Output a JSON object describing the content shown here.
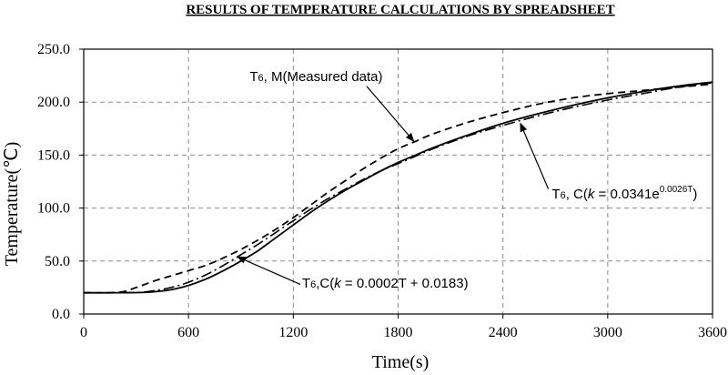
{
  "chart_data": {
    "type": "line",
    "title": "RESULTS OF TEMPERATURE CALCULATIONS BY SPREADSHEET",
    "xlabel": "Time(s)",
    "ylabel": "Temperature(℃)",
    "xlim": [
      0,
      3600
    ],
    "ylim": [
      0,
      250
    ],
    "x_ticks": [
      "0",
      "600",
      "1200",
      "1800",
      "2400",
      "3000",
      "3600"
    ],
    "x_tick_values": [
      0,
      600,
      1200,
      1800,
      2400,
      3000,
      3600
    ],
    "y_ticks": [
      "0.0",
      "50.0",
      "100.0",
      "150.0",
      "200.0",
      "250.0"
    ],
    "y_tick_values": [
      0,
      50,
      100,
      150,
      200,
      250
    ],
    "grid": true,
    "series": [
      {
        "style": "dashed",
        "x": [
          0,
          200,
          300,
          400,
          500,
          600,
          700,
          800,
          900,
          1000,
          1100,
          1200,
          1300,
          1400,
          1500,
          1600,
          1700,
          1800,
          1900,
          2000,
          2200,
          2400,
          2600,
          2800,
          3000,
          3200,
          3400,
          3600
        ],
        "y": [
          20,
          20.5,
          25,
          31,
          36,
          41,
          46,
          53,
          61,
          70,
          80,
          91,
          103,
          115,
          126,
          137,
          147,
          156,
          163,
          170,
          181,
          190,
          198,
          204,
          208,
          211,
          214,
          217
        ]
      },
      {
        "style": "solid",
        "x": [
          0,
          300,
          400,
          500,
          600,
          700,
          800,
          900,
          1000,
          1100,
          1200,
          1300,
          1400,
          1500,
          1600,
          1700,
          1800,
          1900,
          2000,
          2200,
          2400,
          2600,
          2800,
          3000,
          3200,
          3400,
          3600
        ],
        "y": [
          20,
          20.2,
          21,
          23,
          27,
          33,
          41,
          50,
          60,
          72,
          84,
          96,
          107,
          117,
          126,
          135,
          143,
          150,
          157,
          169,
          180,
          189,
          197,
          204,
          210,
          215,
          219
        ]
      },
      {
        "style": "dash-dot",
        "x": [
          0,
          300,
          400,
          500,
          600,
          700,
          800,
          900,
          1000,
          1100,
          1200,
          1300,
          1400,
          1500,
          1600,
          1700,
          1800,
          1900,
          2000,
          2200,
          2400,
          2600,
          2800,
          3000,
          3200,
          3400,
          3600
        ],
        "y": [
          20,
          20.3,
          22,
          25,
          30,
          37,
          46,
          56,
          66,
          77,
          88,
          99,
          109,
          118,
          127,
          135,
          142,
          149,
          156,
          168,
          178,
          187,
          195,
          202,
          208,
          214,
          218
        ]
      }
    ],
    "annotations": [
      {
        "name": "measured",
        "main": "T",
        "sub": "6",
        "rest": ", M(Measured data)",
        "text_at": [
          950,
          220
        ],
        "arrow_from": [
          1620,
          215
        ],
        "arrow_to": [
          1890,
          163
        ]
      },
      {
        "name": "exponential",
        "main": "T",
        "sub": "6",
        "pre": ", C(",
        "k": "k",
        "eq": " = 0.0341e",
        "sup": "0.0026T",
        "post": ")",
        "text_at": [
          2680,
          109
        ],
        "arrow_from": [
          2660,
          118
        ],
        "arrow_to": [
          2500,
          180
        ]
      },
      {
        "name": "linear",
        "main": "T",
        "sub": "6",
        "pre": ",C(",
        "k": "k",
        "eq": " = 0.0002T + 0.0183",
        "post": ")",
        "text_at": [
          1250,
          25
        ],
        "arrow_from": [
          1240,
          28
        ],
        "arrow_to": [
          880,
          54
        ]
      }
    ]
  }
}
